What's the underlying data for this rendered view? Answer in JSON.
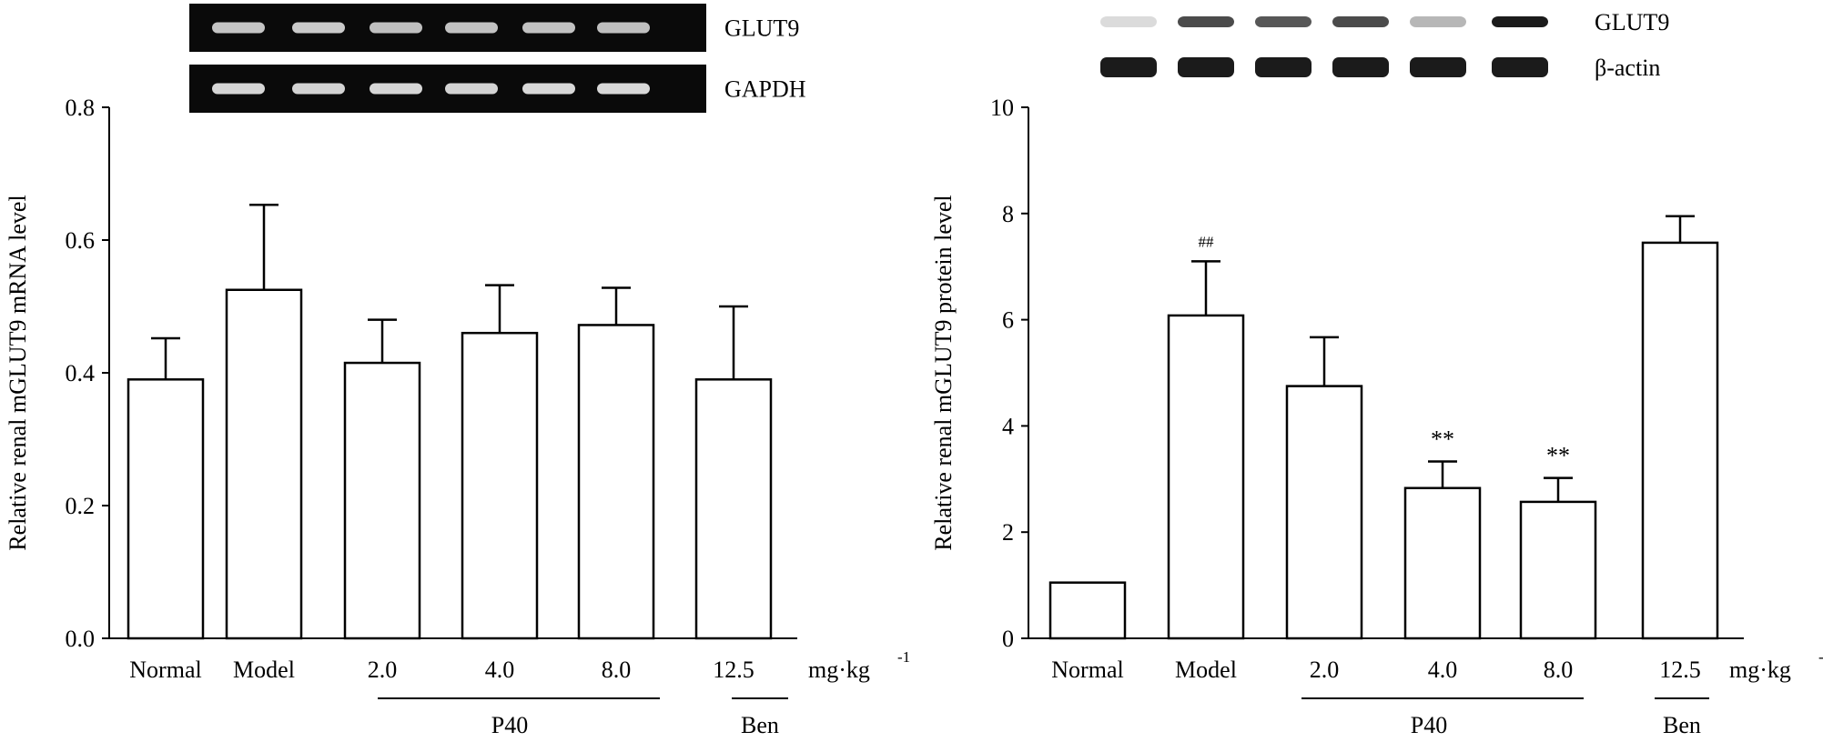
{
  "chart_data": [
    {
      "type": "bar",
      "ylabel": "Relative renal mGLUT9 mRNA level",
      "ylim": [
        0,
        0.8
      ],
      "yticks": [
        "0.0",
        "0.2",
        "0.4",
        "0.6",
        "0.8"
      ],
      "categories": [
        "Normal",
        "Model",
        "2.0",
        "4.0",
        "8.0",
        "12.5"
      ],
      "values": [
        0.39,
        0.525,
        0.415,
        0.46,
        0.472,
        0.39
      ],
      "errors": [
        0.062,
        0.128,
        0.065,
        0.072,
        0.056,
        0.11
      ],
      "annotations": [
        "",
        "",
        "",
        "",
        "",
        ""
      ],
      "unit": "mg·kg",
      "unit_exponent": "-1",
      "groups": [
        {
          "label": "P40",
          "span": [
            "2.0",
            "8.0"
          ]
        },
        {
          "label": "Ben",
          "span": [
            "12.5",
            "12.5"
          ]
        }
      ],
      "blot_labels": [
        "GLUT9",
        "GAPDH"
      ],
      "blot_intensity": [
        [
          0.78,
          0.82,
          0.74,
          0.76,
          0.76,
          0.74
        ],
        [
          0.9,
          0.88,
          0.9,
          0.88,
          0.92,
          0.92
        ]
      ]
    },
    {
      "type": "bar",
      "ylabel": "Relative renal mGLUT9 protein level",
      "ylim": [
        0,
        10
      ],
      "yticks": [
        "0",
        "2",
        "4",
        "6",
        "8",
        "10"
      ],
      "categories": [
        "Normal",
        "Model",
        "2.0",
        "4.0",
        "8.0",
        "12.5"
      ],
      "values": [
        1.05,
        6.08,
        4.75,
        2.83,
        2.57,
        7.45
      ],
      "errors": [
        0,
        1.02,
        0.92,
        0.5,
        0.45,
        0.5
      ],
      "annotations": [
        "",
        "##",
        "",
        "**",
        "**",
        ""
      ],
      "unit": "mg·kg",
      "unit_exponent": "-1",
      "groups": [
        {
          "label": "P40",
          "span": [
            "2.0",
            "8.0"
          ]
        },
        {
          "label": "Ben",
          "span": [
            "12.5",
            "12.5"
          ]
        }
      ],
      "blot_labels": [
        "GLUT9",
        "β-actin"
      ],
      "blot_intensity": [
        [
          0.15,
          0.75,
          0.7,
          0.75,
          0.3,
          0.95
        ],
        [
          0.95,
          0.95,
          0.95,
          0.95,
          0.95,
          0.95
        ]
      ]
    }
  ]
}
